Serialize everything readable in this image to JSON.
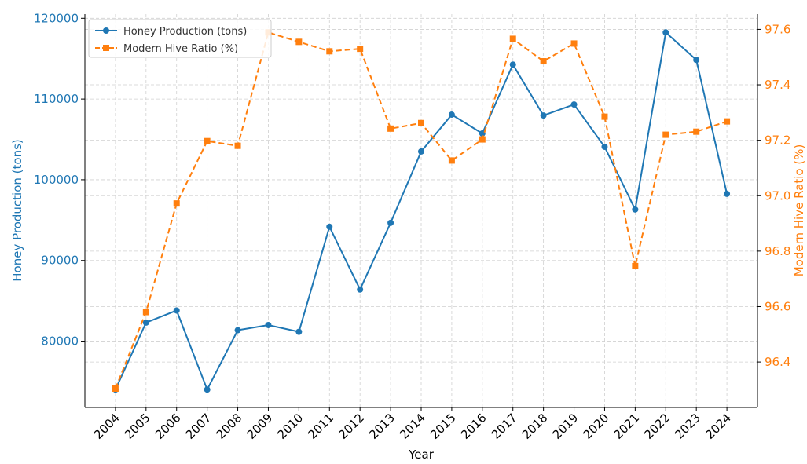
{
  "chart_data": {
    "type": "line",
    "xlabel": "Year",
    "ylabel": "Honey Production (tons)",
    "y2label": "Modern Hive Ratio (%)",
    "x": [
      2004,
      2005,
      2006,
      2007,
      2008,
      2009,
      2010,
      2011,
      2012,
      2013,
      2014,
      2015,
      2016,
      2017,
      2018,
      2019,
      2020,
      2021,
      2022,
      2023,
      2024
    ],
    "xlim": [
      2003,
      2025
    ],
    "xticks": [
      2004,
      2005,
      2006,
      2007,
      2008,
      2009,
      2010,
      2011,
      2012,
      2013,
      2014,
      2015,
      2016,
      2017,
      2018,
      2019,
      2020,
      2021,
      2022,
      2023,
      2024
    ],
    "ylim": [
      71785,
      120515
    ],
    "yticks": [
      80000,
      90000,
      100000,
      110000,
      120000
    ],
    "y2lim": [
      96.236,
      97.655
    ],
    "y2ticks": [
      96.4,
      96.6,
      96.8,
      {
        "value": 97.0,
        "label": "97.0"
      },
      97.2,
      97.4,
      97.6
    ],
    "grid": true,
    "legend": "upper-left",
    "series": [
      {
        "name": "Honey Production (tons)",
        "color": "#1f77b4",
        "marker": "circle",
        "dash": "solid",
        "values": [
          74000,
          82300,
          83800,
          74000,
          81360,
          82000,
          81160,
          94170,
          86400,
          94660,
          103500,
          108060,
          105730,
          114270,
          107960,
          109320,
          104080,
          96310,
          118250,
          114850,
          98250
        ]
      },
      {
        "name": "Modern Hive Ratio (%)",
        "color": "#ff7f0e",
        "marker": "square",
        "dash": "dashed",
        "axis": "y2",
        "values": [
          96.304,
          96.58,
          96.972,
          97.197,
          97.18,
          97.589,
          97.555,
          97.521,
          97.53,
          97.242,
          97.262,
          97.127,
          97.203,
          97.566,
          97.485,
          97.549,
          97.285,
          96.746,
          97.22,
          97.231,
          97.268
        ]
      }
    ]
  }
}
